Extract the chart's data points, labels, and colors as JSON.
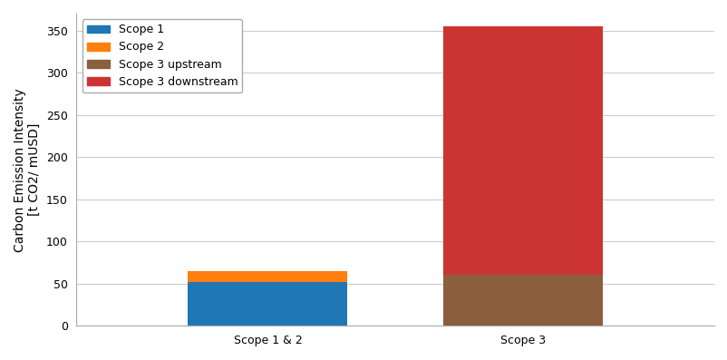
{
  "categories": [
    "Scope 1 & 2",
    "Scope 3"
  ],
  "scope1_val": 52,
  "scope2_val": 13,
  "scope3_upstream_val": 60,
  "scope3_downstream_val": 295,
  "colors": {
    "scope1": "#1f77b4",
    "scope2": "#ff7f0e",
    "scope3_upstream": "#8B5E3C",
    "scope3_downstream": "#cc3333"
  },
  "legend_labels": [
    "Scope 1",
    "Scope 2",
    "Scope 3 upstream",
    "Scope 3 downstream"
  ],
  "ylabel_line1": "Carbon Emission Intensity",
  "ylabel_line2": "[t CO2/ mUSD]",
  "ylim": [
    0,
    370
  ],
  "yticks": [
    0,
    50,
    100,
    150,
    200,
    250,
    300,
    350
  ],
  "background_color": "#ffffff",
  "bar_width": 0.25,
  "figsize": [
    8.03,
    3.97
  ],
  "dpi": 100,
  "grid_color": "#cccccc",
  "spine_color": "#aaaaaa"
}
